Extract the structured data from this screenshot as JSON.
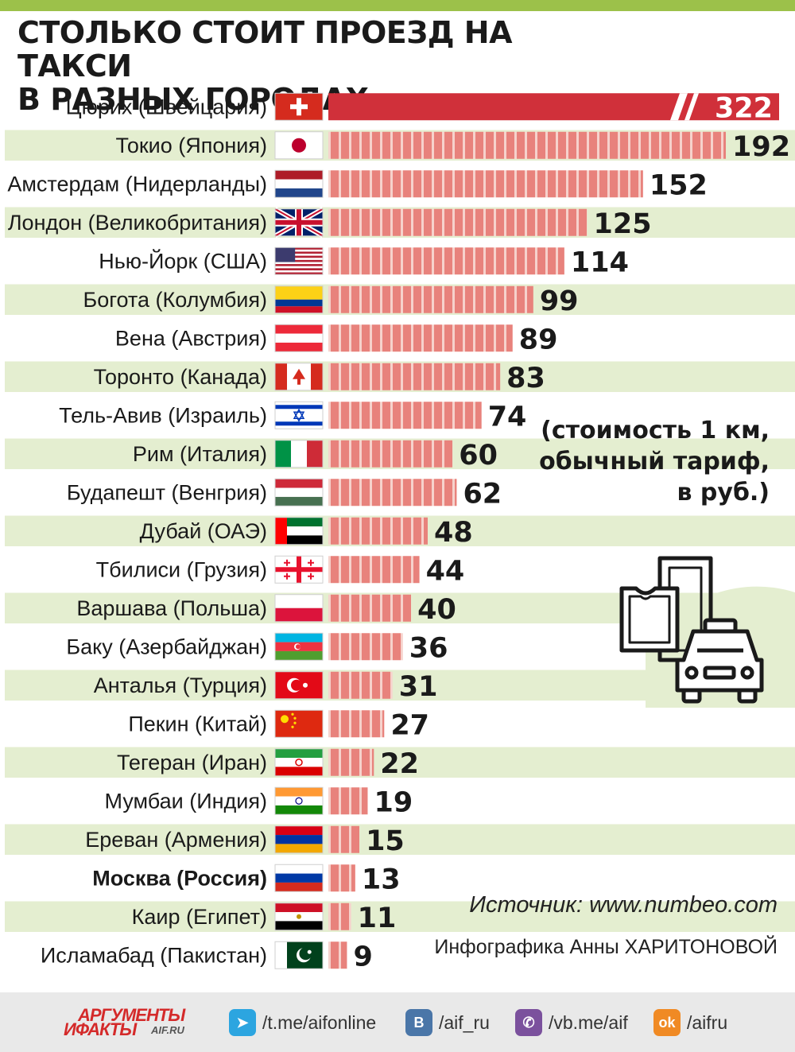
{
  "title": {
    "line1": "СТОЛЬКО СТОИТ ПРОЕЗД НА ТАКСИ",
    "line2": "В РАЗНЫХ ГОРОДАХ"
  },
  "note": {
    "line1": "(стоимость 1 км,",
    "line2": "обычный тариф,",
    "line3": "в руб.)"
  },
  "source": "Источник: www.numbeo.com",
  "credit": "Инфографика Анны ХАРИТОНОВОЙ",
  "colors": {
    "bar": "#e8827c",
    "bar_gap": "#f6d2cc",
    "highlight_bar": "#d0303a",
    "row_stripe": "#e4eed0",
    "accent": "#9cc14a"
  },
  "chart_data": {
    "type": "bar",
    "orientation": "horizontal",
    "categories": [
      "Цюрих (Швейцария)",
      "Токио (Япония)",
      "Амстердам (Нидерланды)",
      "Лондон (Великобритания)",
      "Нью-Йорк (США)",
      "Богота (Колумбия)",
      "Вена (Австрия)",
      "Торонто (Канада)",
      "Тель-Авив (Израиль)",
      "Рим (Италия)",
      "Будапешт (Венгрия)",
      "Дубай (ОАЭ)",
      "Тбилиси (Грузия)",
      "Варшава (Польша)",
      "Баку (Азербайджан)",
      "Анталья (Турция)",
      "Пекин (Китай)",
      "Тегеран (Иран)",
      "Мумбаи (Индия)",
      "Ереван (Армения)",
      "Москва (Россия)",
      "Каир (Египет)",
      "Исламабад (Пакистан)"
    ],
    "values": [
      322,
      192,
      152,
      125,
      114,
      99,
      89,
      83,
      74,
      60,
      62,
      48,
      44,
      40,
      36,
      31,
      27,
      22,
      19,
      15,
      13,
      11,
      9
    ],
    "flags": [
      "switzerland-flag",
      "japan-flag",
      "netherlands-flag",
      "uk-flag",
      "usa-flag",
      "colombia-flag",
      "austria-flag",
      "canada-flag",
      "israel-flag",
      "italy-flag",
      "hungary-flag",
      "uae-flag",
      "georgia-flag",
      "poland-flag",
      "azerbaijan-flag",
      "turkey-flag",
      "china-flag",
      "iran-flag",
      "india-flag",
      "armenia-flag",
      "russia-flag",
      "egypt-flag",
      "pakistan-flag"
    ],
    "highlighted": "Москва (Россия)",
    "axis_break_on": "Цюрих (Швейцария)",
    "title": "СТОЛЬКО СТОИТ ПРОЕЗД НА ТАКСИ В РАЗНЫХ ГОРОДАХ",
    "xlabel": "",
    "ylabel": "",
    "grid": false
  },
  "footer": {
    "logo_line1": "АРГУМЕНТЫ",
    "logo_line2": "ИФАКТЫ",
    "logo_line3": "AIF.RU",
    "links": [
      {
        "icon": "telegram-icon",
        "text": "/t.me/aifonline",
        "color": "#2ca5e0",
        "glyph": "➤"
      },
      {
        "icon": "vk-icon",
        "text": "/aif_ru",
        "color": "#4a76a8",
        "glyph": "В"
      },
      {
        "icon": "viber-icon",
        "text": "/vb.me/aif",
        "color": "#7b519d",
        "glyph": "✆"
      },
      {
        "icon": "odnoklassniki-icon",
        "text": "/aifru",
        "color": "#f08a24",
        "glyph": "ok"
      }
    ]
  }
}
